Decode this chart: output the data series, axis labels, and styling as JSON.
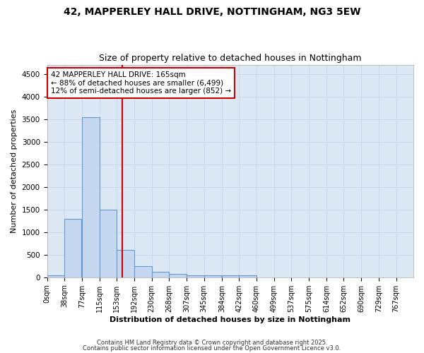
{
  "title1": "42, MAPPERLEY HALL DRIVE, NOTTINGHAM, NG3 5EW",
  "title2": "Size of property relative to detached houses in Nottingham",
  "xlabel": "Distribution of detached houses by size in Nottingham",
  "ylabel": "Number of detached properties",
  "bar_left_edges": [
    0,
    38,
    77,
    115,
    153,
    192,
    230,
    268,
    307,
    345,
    384,
    422,
    460,
    499,
    537,
    575,
    614,
    652,
    690,
    729
  ],
  "bar_heights": [
    50,
    1300,
    3550,
    1500,
    600,
    250,
    120,
    80,
    50,
    50,
    50,
    50,
    0,
    0,
    0,
    0,
    0,
    0,
    0,
    0
  ],
  "bin_width": 38,
  "bar_color": "#c5d8f0",
  "bar_edge_color": "#6699cc",
  "bar_linewidth": 0.8,
  "grid_color": "#c8d8ee",
  "bg_color": "#dde8f5",
  "red_line_x": 165,
  "red_line_color": "#cc0000",
  "annotation_text": "42 MAPPERLEY HALL DRIVE: 165sqm\n← 88% of detached houses are smaller (6,499)\n12% of semi-detached houses are larger (852) →",
  "annotation_box_color": "#ffffff",
  "annotation_box_edge": "#cc0000",
  "annotation_fontsize": 7.5,
  "tick_labels": [
    "0sqm",
    "38sqm",
    "77sqm",
    "115sqm",
    "153sqm",
    "192sqm",
    "230sqm",
    "268sqm",
    "307sqm",
    "345sqm",
    "384sqm",
    "422sqm",
    "460sqm",
    "499sqm",
    "537sqm",
    "575sqm",
    "614sqm",
    "652sqm",
    "690sqm",
    "729sqm",
    "767sqm"
  ],
  "yticks": [
    0,
    500,
    1000,
    1500,
    2000,
    2500,
    3000,
    3500,
    4000,
    4500
  ],
  "ylim": [
    0,
    4700
  ],
  "footer1": "Contains HM Land Registry data © Crown copyright and database right 2025.",
  "footer2": "Contains public sector information licensed under the Open Government Licence v3.0.",
  "title1_fontsize": 10,
  "title2_fontsize": 9,
  "axis_label_fontsize": 8,
  "tick_fontsize": 7,
  "footer_fontsize": 6
}
